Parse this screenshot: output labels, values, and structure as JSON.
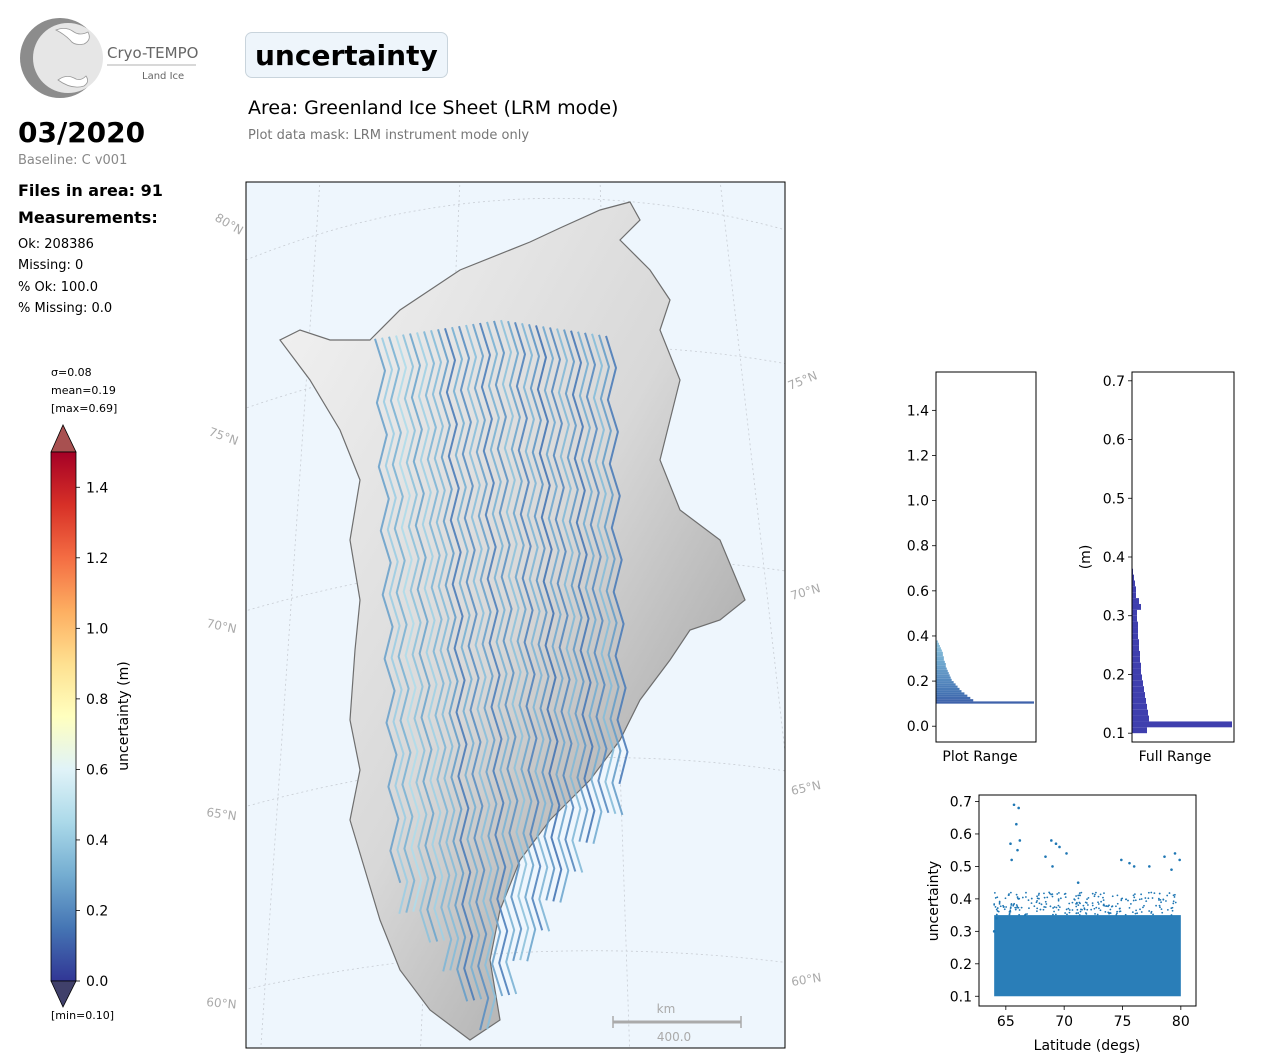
{
  "header": {
    "logo": {
      "name": "Cryo-TEMPO",
      "subtitle": "Land Ice"
    },
    "title": "uncertainty",
    "area": "Area: Greenland Ice Sheet (LRM mode)",
    "mask_note": "Plot data mask: LRM instrument mode only"
  },
  "summary": {
    "date": "03/2020",
    "baseline": "Baseline: C v001",
    "files": "Files in area: 91",
    "measurements_heading": "Measurements:",
    "ok": "Ok: 208386",
    "missing": "Missing: 0",
    "pct_ok": "% Ok: 100.0",
    "pct_missing": "% Missing: 0.0"
  },
  "colorbar": {
    "sigma": "σ=0.08",
    "mean": "mean=0.19",
    "max": "[max=0.69]",
    "min": "[min=0.10]",
    "label": "uncertainty (m)",
    "range": [
      0.0,
      1.5
    ],
    "ticks": [
      "0.0",
      "0.2",
      "0.4",
      "0.6",
      "0.8",
      "1.0",
      "1.2",
      "1.4"
    ],
    "tick_values": [
      0.0,
      0.2,
      0.4,
      0.6,
      0.8,
      1.0,
      1.2,
      1.4
    ],
    "colormap": "RdYlBu_r",
    "over_color": "#a85050",
    "under_color": "#40406a"
  },
  "map": {
    "background": "#eef6fd",
    "lat_labels_left": [
      "80°N",
      "75°N",
      "70°N",
      "65°N",
      "60°N"
    ],
    "lat_labels_right": [
      "75°N",
      "70°N",
      "65°N",
      "60°N"
    ],
    "scalebar": {
      "unit": "km",
      "value": "400.0"
    }
  },
  "chart_data": [
    {
      "type": "bar",
      "name": "plot-range-histogram",
      "orientation": "horizontal",
      "xlabel": "Plot Range",
      "ylim": [
        -0.07,
        1.57
      ],
      "yticks": [
        "0.0",
        "0.2",
        "0.4",
        "0.6",
        "0.8",
        "1.0",
        "1.2",
        "1.4"
      ],
      "ytick_values": [
        0.0,
        0.2,
        0.4,
        0.6,
        0.8,
        1.0,
        1.2,
        1.4
      ],
      "bins_lo": [
        0.1,
        0.11,
        0.12,
        0.13,
        0.14,
        0.15,
        0.16,
        0.17,
        0.18,
        0.19,
        0.2,
        0.21,
        0.22,
        0.23,
        0.24,
        0.25,
        0.26,
        0.27,
        0.28,
        0.29,
        0.3,
        0.31,
        0.32,
        0.33,
        0.34,
        0.35,
        0.36,
        0.37
      ],
      "relative_counts": [
        1.0,
        0.38,
        0.35,
        0.32,
        0.29,
        0.26,
        0.24,
        0.22,
        0.2,
        0.18,
        0.16,
        0.15,
        0.14,
        0.13,
        0.12,
        0.11,
        0.1,
        0.1,
        0.09,
        0.08,
        0.08,
        0.07,
        0.07,
        0.06,
        0.05,
        0.04,
        0.03,
        0.02
      ]
    },
    {
      "type": "bar",
      "name": "full-range-histogram",
      "orientation": "horizontal",
      "xlabel": "Full Range",
      "ylabel": "(m)",
      "ylim": [
        0.085,
        0.715
      ],
      "yticks": [
        "0.1",
        "0.2",
        "0.3",
        "0.4",
        "0.5",
        "0.6",
        "0.7"
      ],
      "ytick_values": [
        0.1,
        0.2,
        0.3,
        0.4,
        0.5,
        0.6,
        0.7
      ],
      "bins_lo": [
        0.1,
        0.11,
        0.12,
        0.13,
        0.14,
        0.15,
        0.16,
        0.17,
        0.18,
        0.19,
        0.2,
        0.21,
        0.22,
        0.23,
        0.24,
        0.25,
        0.26,
        0.27,
        0.28,
        0.29,
        0.3,
        0.31,
        0.32,
        0.33,
        0.34,
        0.35,
        0.36,
        0.37
      ],
      "relative_counts": [
        0.15,
        1.0,
        0.17,
        0.16,
        0.15,
        0.14,
        0.13,
        0.12,
        0.11,
        0.1,
        0.09,
        0.09,
        0.08,
        0.08,
        0.07,
        0.07,
        0.06,
        0.06,
        0.06,
        0.05,
        0.05,
        0.09,
        0.07,
        0.04,
        0.04,
        0.03,
        0.02,
        0.01
      ]
    },
    {
      "type": "scatter",
      "name": "uncertainty-vs-latitude",
      "xlabel": "Latitude (degs)",
      "ylabel": "uncertainty",
      "xlim": [
        62.7,
        81.3
      ],
      "ylim": [
        0.07,
        0.72
      ],
      "xticks": [
        "65",
        "70",
        "75",
        "80"
      ],
      "xtick_values": [
        65,
        70,
        75,
        80
      ],
      "yticks": [
        "0.1",
        "0.2",
        "0.3",
        "0.4",
        "0.5",
        "0.6",
        "0.7"
      ],
      "ytick_values": [
        0.1,
        0.2,
        0.3,
        0.4,
        0.5,
        0.6,
        0.7
      ],
      "color": "#1f77b4",
      "x_range": [
        64,
        80
      ],
      "dense_band": [
        0.1,
        0.35
      ],
      "outlier_points": [
        [
          65.7,
          0.69
        ],
        [
          66.1,
          0.68
        ],
        [
          65.9,
          0.63
        ],
        [
          66.2,
          0.58
        ],
        [
          65.4,
          0.57
        ],
        [
          66.0,
          0.55
        ],
        [
          65.5,
          0.52
        ],
        [
          68.9,
          0.58
        ],
        [
          69.3,
          0.57
        ],
        [
          69.6,
          0.56
        ],
        [
          68.4,
          0.53
        ],
        [
          70.2,
          0.54
        ],
        [
          69.0,
          0.5
        ],
        [
          71.2,
          0.45
        ],
        [
          74.9,
          0.52
        ],
        [
          75.6,
          0.51
        ],
        [
          76.0,
          0.5
        ],
        [
          77.3,
          0.5
        ],
        [
          78.6,
          0.53
        ],
        [
          79.5,
          0.54
        ],
        [
          79.9,
          0.52
        ],
        [
          79.2,
          0.49
        ],
        [
          64.2,
          0.34
        ],
        [
          64.0,
          0.3
        ]
      ]
    }
  ]
}
